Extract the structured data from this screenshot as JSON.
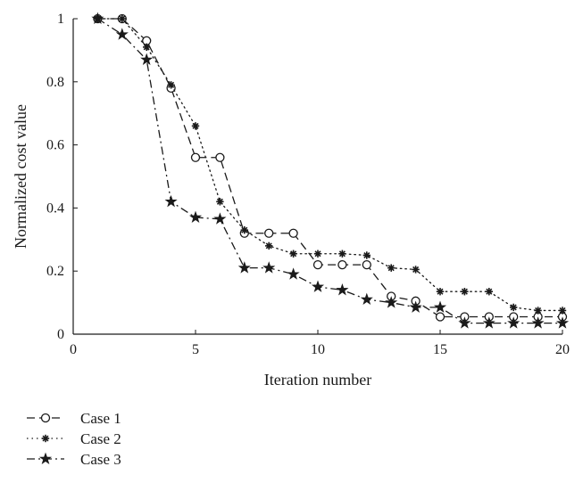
{
  "chart_data": {
    "type": "line",
    "xlabel": "Iteration number",
    "ylabel": "Normalized cost value",
    "xlim": [
      0,
      20
    ],
    "ylim": [
      0,
      1
    ],
    "xticks": [
      0,
      5,
      10,
      15,
      20
    ],
    "yticks": [
      0,
      0.2,
      0.4,
      0.6,
      0.8,
      1
    ],
    "ytick_labels": [
      "0",
      "0.2",
      "0.4",
      "0.6",
      "0.8",
      "1"
    ],
    "grid": false,
    "legend_position": "below",
    "x": [
      1,
      2,
      3,
      4,
      5,
      6,
      7,
      8,
      9,
      10,
      11,
      12,
      13,
      14,
      15,
      16,
      17,
      18,
      19,
      20
    ],
    "series": [
      {
        "name": "Case 1",
        "line_style": "dashed",
        "marker": "circle",
        "values": [
          1.0,
          1.0,
          0.93,
          0.78,
          0.56,
          0.56,
          0.32,
          0.32,
          0.32,
          0.22,
          0.22,
          0.22,
          0.12,
          0.105,
          0.055,
          0.055,
          0.055,
          0.055,
          0.055,
          0.055
        ]
      },
      {
        "name": "Case 2",
        "line_style": "dotted",
        "marker": "asterisk",
        "values": [
          1.0,
          1.0,
          0.91,
          0.79,
          0.66,
          0.42,
          0.33,
          0.28,
          0.255,
          0.255,
          0.255,
          0.25,
          0.21,
          0.205,
          0.135,
          0.135,
          0.135,
          0.085,
          0.075,
          0.075
        ]
      },
      {
        "name": "Case 3",
        "line_style": "dashdot",
        "marker": "star",
        "values": [
          1.0,
          0.95,
          0.87,
          0.42,
          0.37,
          0.365,
          0.21,
          0.21,
          0.19,
          0.15,
          0.14,
          0.11,
          0.1,
          0.085,
          0.085,
          0.035,
          0.035,
          0.035,
          0.035,
          0.035
        ]
      }
    ]
  }
}
